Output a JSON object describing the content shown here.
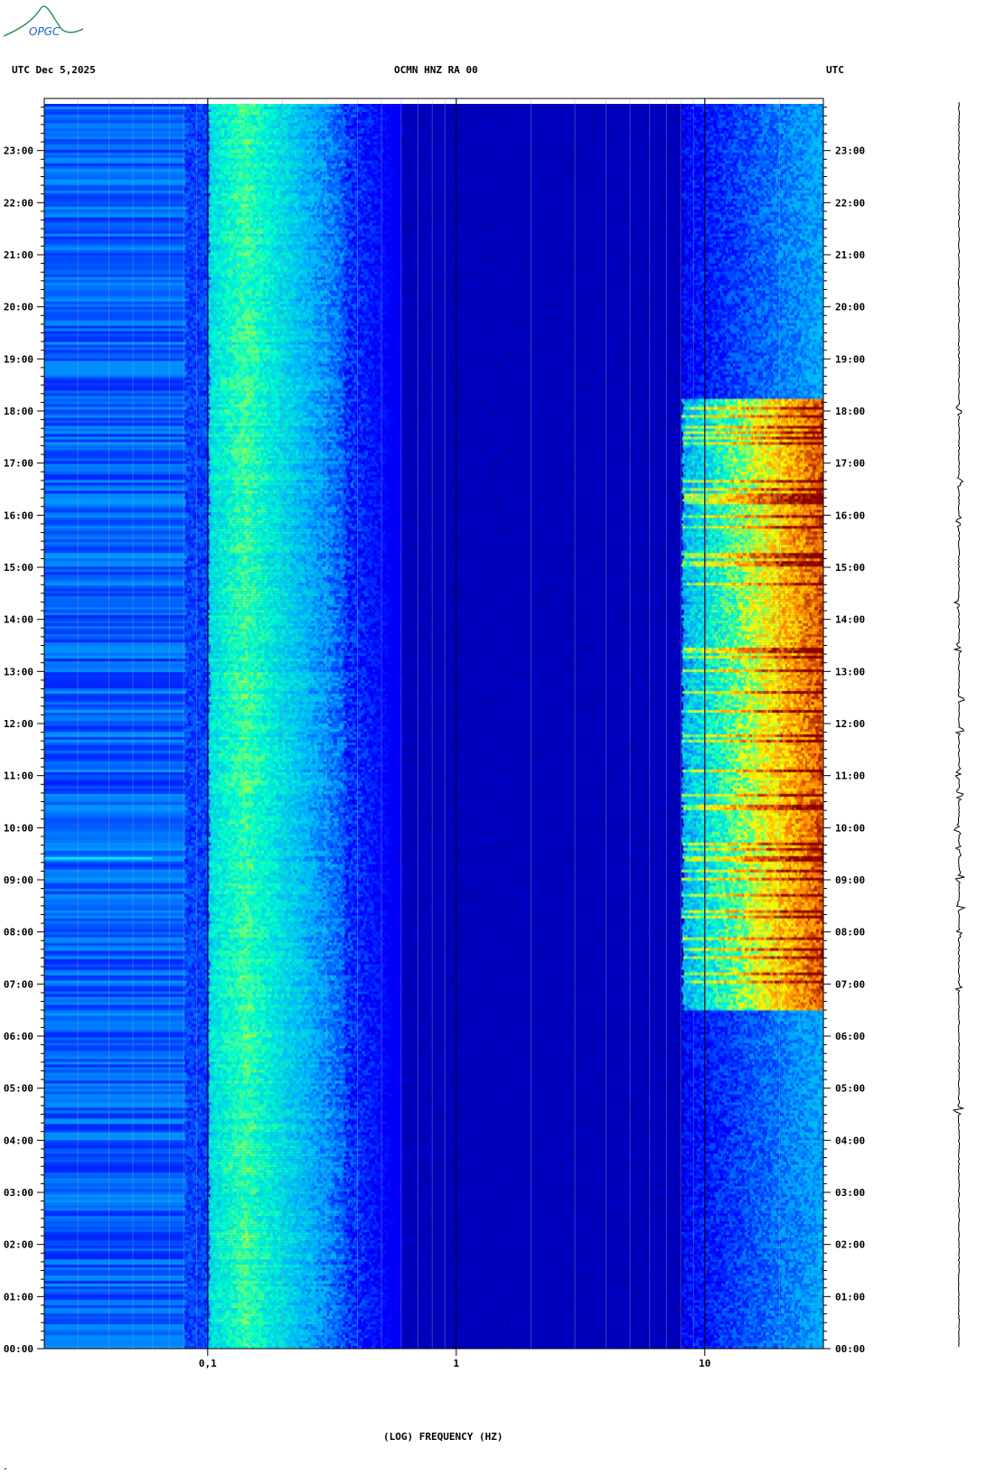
{
  "header": {
    "left": "UTC  Dec 5,2025",
    "center": "OCMN HNZ RA 00",
    "right": "UTC"
  },
  "logo": {
    "text": "OPGC",
    "color": "#2e8b57"
  },
  "footer_mark": "\"",
  "chart_data": {
    "type": "heatmap",
    "title": "OCMN HNZ RA 00",
    "date": "Dec 5,2025",
    "xlabel": "(LOG) FREQUENCY (HZ)",
    "xscale": "log",
    "xlim": [
      0.022,
      30
    ],
    "xticks": [
      {
        "value": 0.1,
        "label": "0,1"
      },
      {
        "value": 1,
        "label": "1"
      },
      {
        "value": 10,
        "label": "10"
      }
    ],
    "ylabel": "UTC",
    "ylim": [
      "00:00",
      "24:00"
    ],
    "yticks": [
      "00:00",
      "01:00",
      "02:00",
      "03:00",
      "04:00",
      "05:00",
      "06:00",
      "07:00",
      "08:00",
      "09:00",
      "10:00",
      "11:00",
      "12:00",
      "13:00",
      "14:00",
      "15:00",
      "16:00",
      "17:00",
      "18:00",
      "19:00",
      "20:00",
      "21:00",
      "22:00",
      "23:00"
    ],
    "colormap": [
      "#00008b",
      "#0000ff",
      "#00aaff",
      "#00ffcc",
      "#ffff00",
      "#ff8000",
      "#8b0000"
    ],
    "background_level": "#0000a8",
    "features": [
      {
        "name": "microseism band",
        "freq_hz": [
          0.1,
          0.3
        ],
        "time": [
          "00:00",
          "24:00"
        ],
        "color": "#00ffcc"
      },
      {
        "name": "long-period noise",
        "freq_hz": [
          0.022,
          0.08
        ],
        "time": [
          "00:00",
          "24:00"
        ],
        "color": "#0050ff"
      },
      {
        "name": "anthropogenic high-frequency noise",
        "freq_hz": [
          12,
          30
        ],
        "time": [
          "06:30",
          "18:20"
        ],
        "color": "#8b0000"
      },
      {
        "name": "spike line",
        "freq_hz": [
          0.022,
          0.06
        ],
        "time": [
          "09:30",
          "09:32"
        ],
        "color": "#00ffff"
      }
    ],
    "trace_events": [
      "04:35",
      "06:55",
      "08:00",
      "08:30",
      "09:05",
      "09:35",
      "10:00",
      "10:40",
      "11:05",
      "11:55",
      "12:30",
      "13:30",
      "14:20",
      "15:55",
      "16:40",
      "18:05"
    ]
  }
}
